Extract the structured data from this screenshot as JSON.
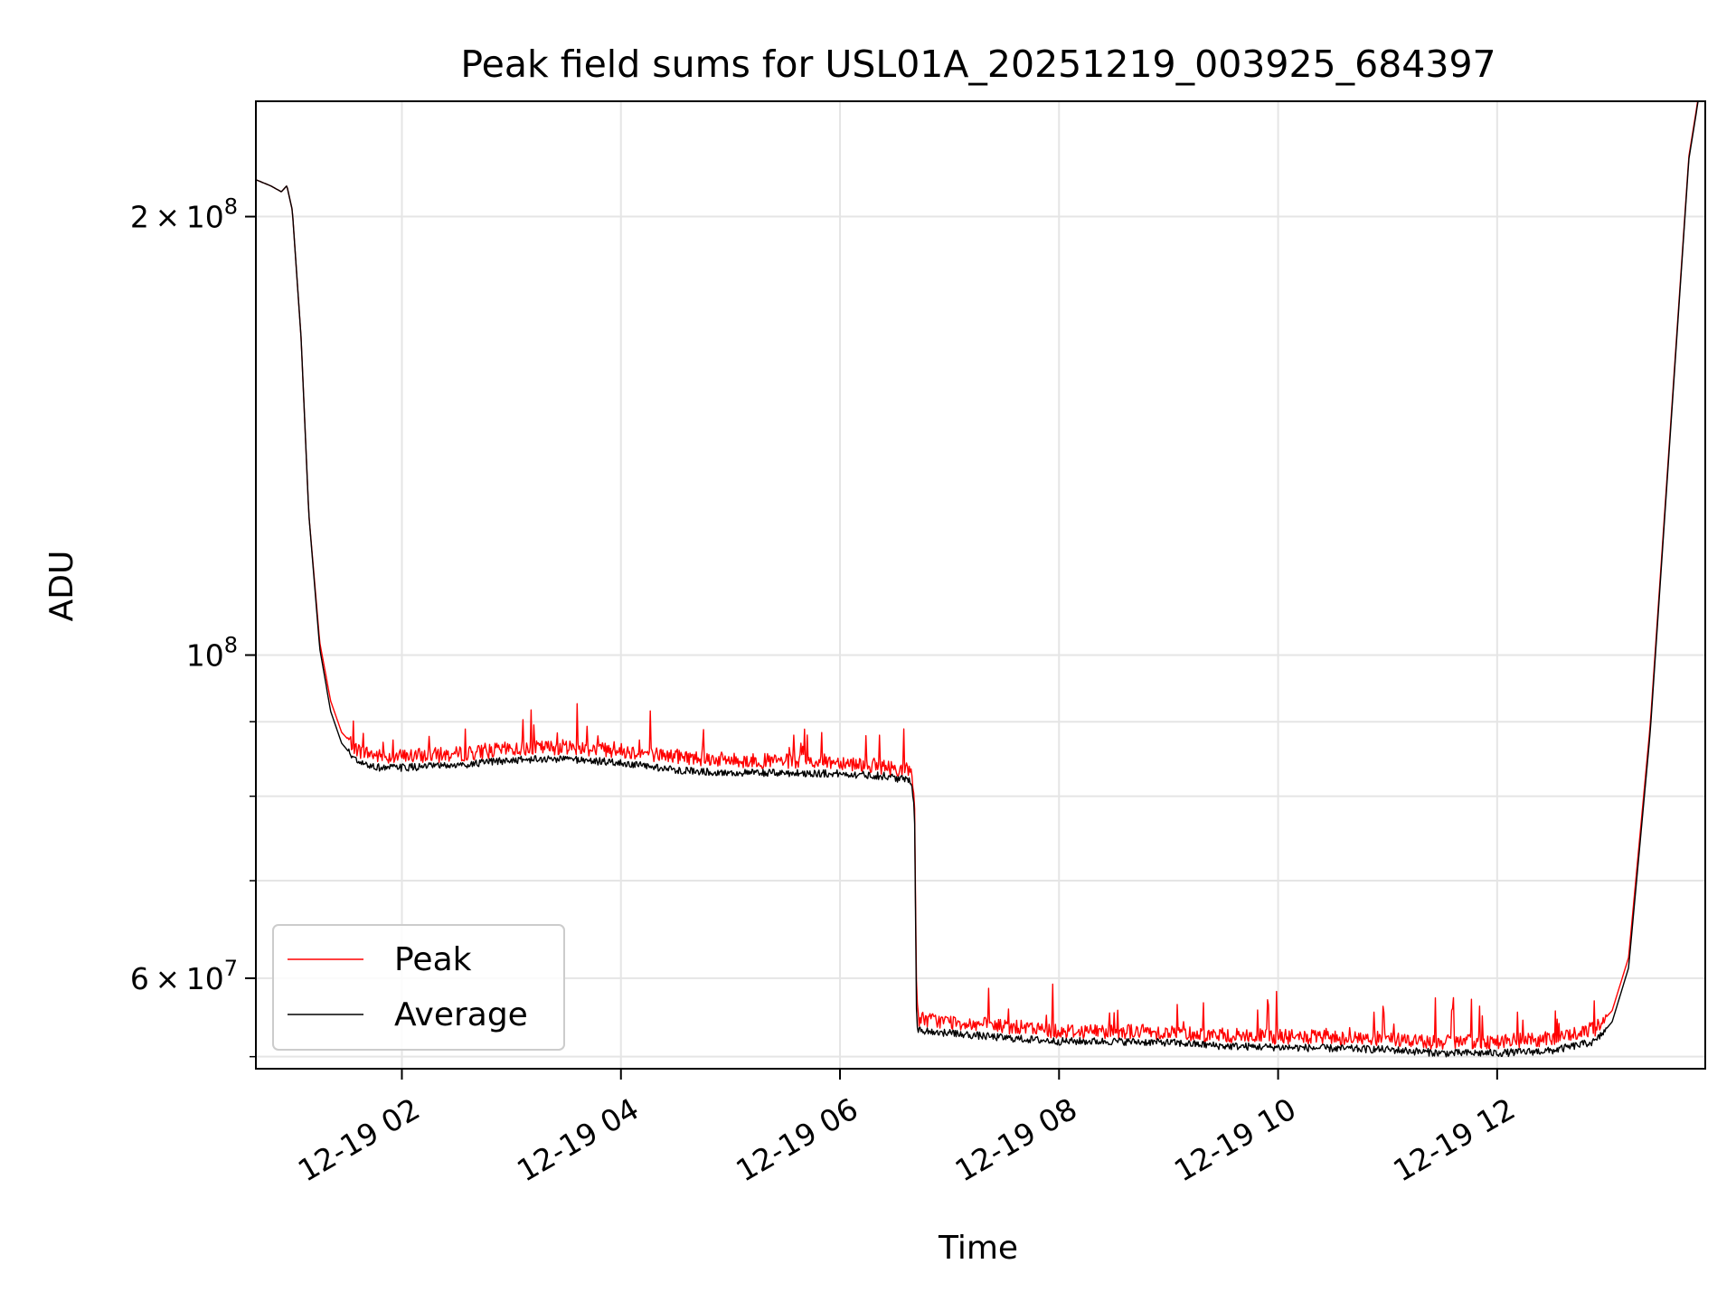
{
  "chart_data": {
    "type": "line",
    "title": "Peak field sums for USL01A_20251219_003925_684397",
    "xlabel": "Time",
    "ylabel": "ADU",
    "yscale": "log",
    "xlim_hours": [
      0.667,
      13.9
    ],
    "ylim": [
      52000000,
      240000000
    ],
    "x_ticks": [
      {
        "hour": 2,
        "label": "12-19 02"
      },
      {
        "hour": 4,
        "label": "12-19 04"
      },
      {
        "hour": 6,
        "label": "12-19 06"
      },
      {
        "hour": 8,
        "label": "12-19 08"
      },
      {
        "hour": 10,
        "label": "12-19 10"
      },
      {
        "hour": 12,
        "label": "12-19 12"
      }
    ],
    "y_major_ticks": [
      {
        "value": 200000000,
        "mantissa": "2",
        "exp": "8"
      },
      {
        "value": 100000000,
        "mantissa": "",
        "exp": "8"
      },
      {
        "value": 60000000,
        "mantissa": "6",
        "exp": "7"
      }
    ],
    "y_minor_ticks": [
      90000000,
      80000000,
      70000000,
      53000000
    ],
    "grid": true,
    "legend_position": "lower-left",
    "colors": {
      "peak": "#ff0000",
      "average": "#000000",
      "grid": "#e5e5e5"
    },
    "series": [
      {
        "name": "Peak",
        "color": "#ff0000",
        "noise_amplitude": 0.012,
        "spike_rate": 0.06,
        "spike_max": 0.07,
        "points": [
          [
            0.667,
            212000000
          ],
          [
            0.8,
            210000000
          ],
          [
            0.9,
            208000000
          ],
          [
            0.95,
            210000000
          ],
          [
            1.0,
            202000000
          ],
          [
            1.08,
            165000000
          ],
          [
            1.15,
            125000000
          ],
          [
            1.25,
            102000000
          ],
          [
            1.35,
            93000000
          ],
          [
            1.45,
            88500000
          ],
          [
            1.6,
            86000000
          ],
          [
            1.8,
            85200000
          ],
          [
            2.0,
            85200000
          ],
          [
            2.5,
            85500000
          ],
          [
            3.0,
            86200000
          ],
          [
            3.5,
            86500000
          ],
          [
            4.0,
            86000000
          ],
          [
            4.5,
            85200000
          ],
          [
            5.0,
            84700000
          ],
          [
            5.5,
            84500000
          ],
          [
            6.0,
            84500000
          ],
          [
            6.4,
            83800000
          ],
          [
            6.65,
            83300000
          ],
          [
            6.68,
            80500000
          ],
          [
            6.7,
            56300000
          ],
          [
            7.0,
            56000000
          ],
          [
            7.5,
            55600000
          ],
          [
            8.0,
            55200000
          ],
          [
            8.5,
            55200000
          ],
          [
            9.0,
            55100000
          ],
          [
            9.5,
            54800000
          ],
          [
            10.0,
            54700000
          ],
          [
            10.5,
            54600000
          ],
          [
            11.0,
            54500000
          ],
          [
            11.5,
            54200000
          ],
          [
            12.0,
            54300000
          ],
          [
            12.5,
            54500000
          ],
          [
            12.9,
            55400000
          ],
          [
            13.05,
            57000000
          ],
          [
            13.2,
            62000000
          ],
          [
            13.4,
            90000000
          ],
          [
            13.6,
            150000000
          ],
          [
            13.75,
            220000000
          ],
          [
            13.85,
            245000000
          ]
        ]
      },
      {
        "name": "Average",
        "color": "#000000",
        "noise_amplitude": 0.006,
        "spike_rate": 0.0,
        "spike_max": 0.0,
        "points": [
          [
            0.667,
            212000000
          ],
          [
            0.8,
            210000000
          ],
          [
            0.9,
            208000000
          ],
          [
            0.95,
            210000000
          ],
          [
            1.0,
            202000000
          ],
          [
            1.08,
            165000000
          ],
          [
            1.15,
            125000000
          ],
          [
            1.25,
            101000000
          ],
          [
            1.35,
            91500000
          ],
          [
            1.45,
            87000000
          ],
          [
            1.6,
            84300000
          ],
          [
            1.8,
            83700000
          ],
          [
            2.0,
            83700000
          ],
          [
            2.5,
            84000000
          ],
          [
            3.0,
            84700000
          ],
          [
            3.5,
            84900000
          ],
          [
            4.0,
            84300000
          ],
          [
            4.5,
            83400000
          ],
          [
            5.0,
            83000000
          ],
          [
            5.5,
            83000000
          ],
          [
            6.0,
            82900000
          ],
          [
            6.4,
            82600000
          ],
          [
            6.65,
            82000000
          ],
          [
            6.68,
            79000000
          ],
          [
            6.7,
            55300000
          ],
          [
            7.0,
            55000000
          ],
          [
            7.5,
            54600000
          ],
          [
            8.0,
            54300000
          ],
          [
            8.5,
            54300000
          ],
          [
            9.0,
            54200000
          ],
          [
            9.5,
            53900000
          ],
          [
            10.0,
            53800000
          ],
          [
            10.5,
            53700000
          ],
          [
            11.0,
            53600000
          ],
          [
            11.5,
            53300000
          ],
          [
            12.0,
            53300000
          ],
          [
            12.5,
            53500000
          ],
          [
            12.9,
            54300000
          ],
          [
            13.05,
            56000000
          ],
          [
            13.2,
            61000000
          ],
          [
            13.4,
            89000000
          ],
          [
            13.6,
            149000000
          ],
          [
            13.75,
            219000000
          ],
          [
            13.85,
            244000000
          ]
        ]
      }
    ]
  }
}
